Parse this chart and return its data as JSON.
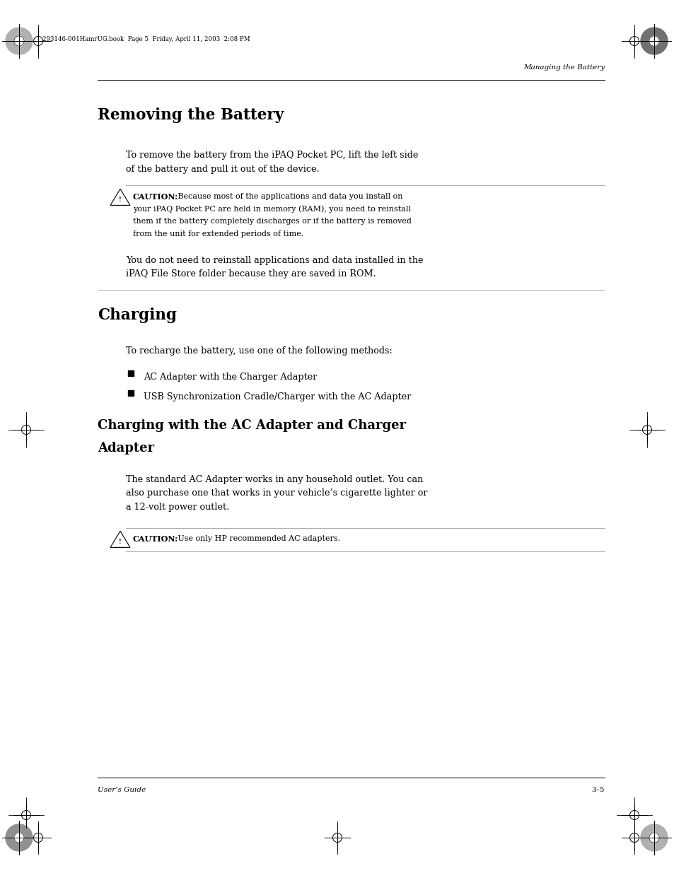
{
  "bg_color": "#ffffff",
  "page_width": 9.54,
  "page_height": 12.35,
  "lm": 1.38,
  "rm": 8.55,
  "body_lm": 1.78,
  "header_italic": "Managing the Battery",
  "file_info": "293146-001HamrUG.book  Page 5  Friday, April 11, 2003  2:08 PM",
  "footer_left": "User’s Guide",
  "footer_right": "3–5",
  "section1_title": "Removing the Battery",
  "section1_body1": "To remove the battery from the iPAQ Pocket PC, lift the left side",
  "section1_body2": "of the battery and pull it out of the device.",
  "caution1_bold": "CAUTION:",
  "caution1_rest_line1": " Because most of the applications and data you install on",
  "caution1_rest_line2": "your iPAQ Pocket PC are held in memory (RAM), you need to reinstall",
  "caution1_rest_line3": "them if the battery completely discharges or if the battery is removed",
  "caution1_rest_line4": "from the unit for extended periods of time.",
  "note1_line1": "You do not need to reinstall applications and data installed in the",
  "note1_line2": "iPAQ File Store folder because they are saved in ROM.",
  "section2_title": "Charging",
  "section2_body": "To recharge the battery, use one of the following methods:",
  "bullet1": "AC Adapter with the Charger Adapter",
  "bullet2": "USB Synchronization Cradle/Charger with the AC Adapter",
  "section3_title_line1": "Charging with the AC Adapter and Charger",
  "section3_title_line2": "Adapter",
  "section3_body1": "The standard AC Adapter works in any household outlet. You can",
  "section3_body2": "also purchase one that works in your vehicle’s cigarette lighter or",
  "section3_body3": "a 12-volt power outlet.",
  "caution2_bold": "CAUTION:",
  "caution2_rest": " Use only HP recommended AC adapters."
}
